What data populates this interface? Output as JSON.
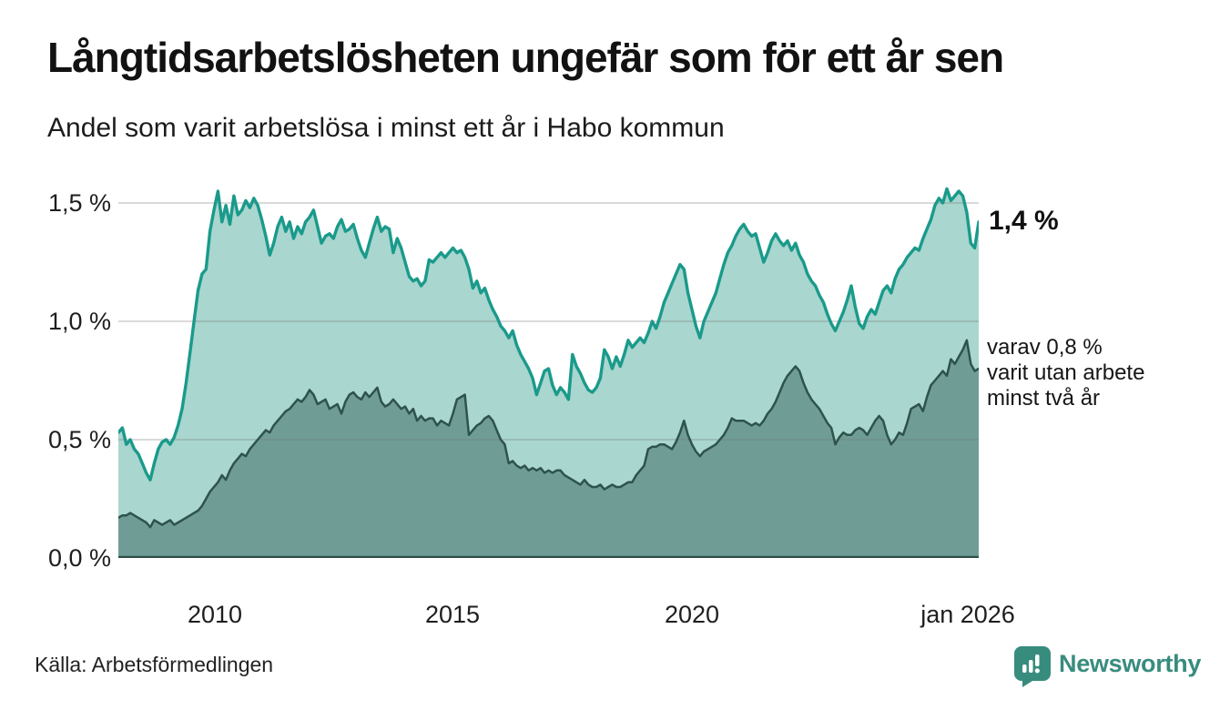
{
  "header": {
    "title": "Långtidsarbetslösheten ungefär som för ett år sen",
    "subtitle": "Andel som varit arbetslösa i minst ett år i Habo kommun"
  },
  "chart_data": {
    "type": "area",
    "title": "Andel som varit arbetslösa i minst ett år i Habo kommun",
    "x_start": "2008-01",
    "x_end": "2026-01",
    "x_interval": "monthly",
    "unit": "%",
    "ylim": [
      0,
      1.627
    ],
    "grid": true,
    "grid_color": "#777777",
    "axis_color": "#2e4f49",
    "yticks": [
      {
        "label": "0,0 %",
        "value": 0
      },
      {
        "label": "0,5 %",
        "value": 0.5
      },
      {
        "label": "1,0 %",
        "value": 1.0
      },
      {
        "label": "1,5 %",
        "value": 1.5
      }
    ],
    "xticks": [
      {
        "label": "2010",
        "month_index": 24
      },
      {
        "label": "2015",
        "month_index": 84
      },
      {
        "label": "2020",
        "month_index": 144
      },
      {
        "label": "jan 2026",
        "month_index": 216
      }
    ],
    "series": [
      {
        "name": "arbetslösa minst ett år",
        "line_color": "#1a9a8b",
        "fill_color": "#a9d6ce",
        "values": [
          0.53,
          0.55,
          0.48,
          0.5,
          0.46,
          0.44,
          0.4,
          0.36,
          0.33,
          0.4,
          0.46,
          0.49,
          0.5,
          0.48,
          0.51,
          0.56,
          0.63,
          0.74,
          0.87,
          1.0,
          1.13,
          1.2,
          1.22,
          1.38,
          1.47,
          1.55,
          1.42,
          1.49,
          1.41,
          1.53,
          1.45,
          1.47,
          1.51,
          1.48,
          1.52,
          1.49,
          1.43,
          1.36,
          1.28,
          1.33,
          1.4,
          1.44,
          1.38,
          1.42,
          1.35,
          1.4,
          1.37,
          1.42,
          1.44,
          1.47,
          1.4,
          1.33,
          1.36,
          1.37,
          1.35,
          1.4,
          1.43,
          1.38,
          1.39,
          1.41,
          1.35,
          1.3,
          1.27,
          1.33,
          1.39,
          1.44,
          1.38,
          1.4,
          1.39,
          1.29,
          1.35,
          1.31,
          1.25,
          1.19,
          1.17,
          1.18,
          1.15,
          1.17,
          1.26,
          1.25,
          1.27,
          1.29,
          1.27,
          1.29,
          1.31,
          1.29,
          1.3,
          1.27,
          1.22,
          1.14,
          1.17,
          1.12,
          1.14,
          1.09,
          1.05,
          1.02,
          0.98,
          0.96,
          0.93,
          0.96,
          0.9,
          0.86,
          0.83,
          0.8,
          0.76,
          0.69,
          0.74,
          0.79,
          0.8,
          0.73,
          0.69,
          0.72,
          0.7,
          0.67,
          0.86,
          0.81,
          0.78,
          0.74,
          0.71,
          0.7,
          0.72,
          0.76,
          0.88,
          0.85,
          0.8,
          0.85,
          0.81,
          0.86,
          0.92,
          0.89,
          0.91,
          0.93,
          0.91,
          0.95,
          1.0,
          0.97,
          1.02,
          1.08,
          1.12,
          1.16,
          1.2,
          1.24,
          1.22,
          1.12,
          1.05,
          0.98,
          0.93,
          1.0,
          1.04,
          1.08,
          1.12,
          1.18,
          1.24,
          1.29,
          1.32,
          1.36,
          1.39,
          1.41,
          1.38,
          1.36,
          1.37,
          1.31,
          1.25,
          1.29,
          1.34,
          1.37,
          1.34,
          1.32,
          1.34,
          1.3,
          1.33,
          1.28,
          1.25,
          1.2,
          1.17,
          1.15,
          1.11,
          1.08,
          1.03,
          0.99,
          0.96,
          1.0,
          1.04,
          1.09,
          1.15,
          1.06,
          0.99,
          0.97,
          1.02,
          1.05,
          1.03,
          1.08,
          1.13,
          1.15,
          1.12,
          1.18,
          1.22,
          1.24,
          1.27,
          1.29,
          1.31,
          1.3,
          1.35,
          1.39,
          1.43,
          1.49,
          1.52,
          1.5,
          1.56,
          1.51,
          1.53,
          1.55,
          1.53,
          1.46,
          1.33,
          1.31,
          1.42
        ]
      },
      {
        "name": "arbetslösa minst två år",
        "line_color": "#2e524c",
        "fill_color": "#6f9d96",
        "values": [
          0.17,
          0.18,
          0.18,
          0.19,
          0.18,
          0.17,
          0.16,
          0.15,
          0.13,
          0.16,
          0.15,
          0.14,
          0.15,
          0.16,
          0.14,
          0.15,
          0.16,
          0.17,
          0.18,
          0.19,
          0.2,
          0.22,
          0.25,
          0.28,
          0.3,
          0.32,
          0.35,
          0.33,
          0.37,
          0.4,
          0.42,
          0.44,
          0.43,
          0.46,
          0.48,
          0.5,
          0.52,
          0.54,
          0.53,
          0.56,
          0.58,
          0.6,
          0.62,
          0.63,
          0.65,
          0.67,
          0.66,
          0.68,
          0.71,
          0.69,
          0.65,
          0.66,
          0.67,
          0.63,
          0.64,
          0.65,
          0.61,
          0.66,
          0.69,
          0.7,
          0.68,
          0.67,
          0.7,
          0.68,
          0.7,
          0.72,
          0.66,
          0.64,
          0.65,
          0.67,
          0.65,
          0.63,
          0.64,
          0.61,
          0.63,
          0.58,
          0.6,
          0.58,
          0.59,
          0.59,
          0.56,
          0.58,
          0.57,
          0.56,
          0.61,
          0.67,
          0.68,
          0.69,
          0.52,
          0.54,
          0.56,
          0.57,
          0.59,
          0.6,
          0.58,
          0.54,
          0.5,
          0.48,
          0.4,
          0.41,
          0.39,
          0.38,
          0.39,
          0.37,
          0.38,
          0.37,
          0.38,
          0.36,
          0.37,
          0.36,
          0.37,
          0.37,
          0.35,
          0.34,
          0.33,
          0.32,
          0.31,
          0.33,
          0.31,
          0.3,
          0.3,
          0.31,
          0.29,
          0.3,
          0.31,
          0.3,
          0.3,
          0.31,
          0.32,
          0.32,
          0.35,
          0.37,
          0.39,
          0.46,
          0.47,
          0.47,
          0.48,
          0.48,
          0.47,
          0.46,
          0.49,
          0.53,
          0.58,
          0.52,
          0.48,
          0.45,
          0.43,
          0.45,
          0.46,
          0.47,
          0.48,
          0.5,
          0.52,
          0.55,
          0.59,
          0.58,
          0.58,
          0.58,
          0.57,
          0.56,
          0.57,
          0.56,
          0.58,
          0.61,
          0.63,
          0.66,
          0.7,
          0.74,
          0.77,
          0.79,
          0.81,
          0.79,
          0.74,
          0.7,
          0.67,
          0.65,
          0.63,
          0.6,
          0.57,
          0.55,
          0.48,
          0.51,
          0.53,
          0.52,
          0.52,
          0.54,
          0.55,
          0.54,
          0.52,
          0.55,
          0.58,
          0.6,
          0.58,
          0.52,
          0.48,
          0.5,
          0.53,
          0.52,
          0.57,
          0.63,
          0.64,
          0.65,
          0.62,
          0.68,
          0.73,
          0.75,
          0.77,
          0.79,
          0.77,
          0.84,
          0.82,
          0.85,
          0.88,
          0.92,
          0.82,
          0.79,
          0.8
        ]
      }
    ],
    "annotations": {
      "latest_value": "1,4 %",
      "secondary_lines": [
        "varav 0,8 %",
        "varit utan arbete",
        "minst två år"
      ]
    }
  },
  "footer": {
    "source": "Källa: Arbetsförmedlingen",
    "brand": "Newsworthy"
  },
  "colors": {
    "accent_teal": "#1a9a8b",
    "light_fill": "#a9d6ce",
    "dark_fill": "#6f9d96",
    "dark_line": "#2e524c",
    "brand_teal": "#388c7e"
  }
}
